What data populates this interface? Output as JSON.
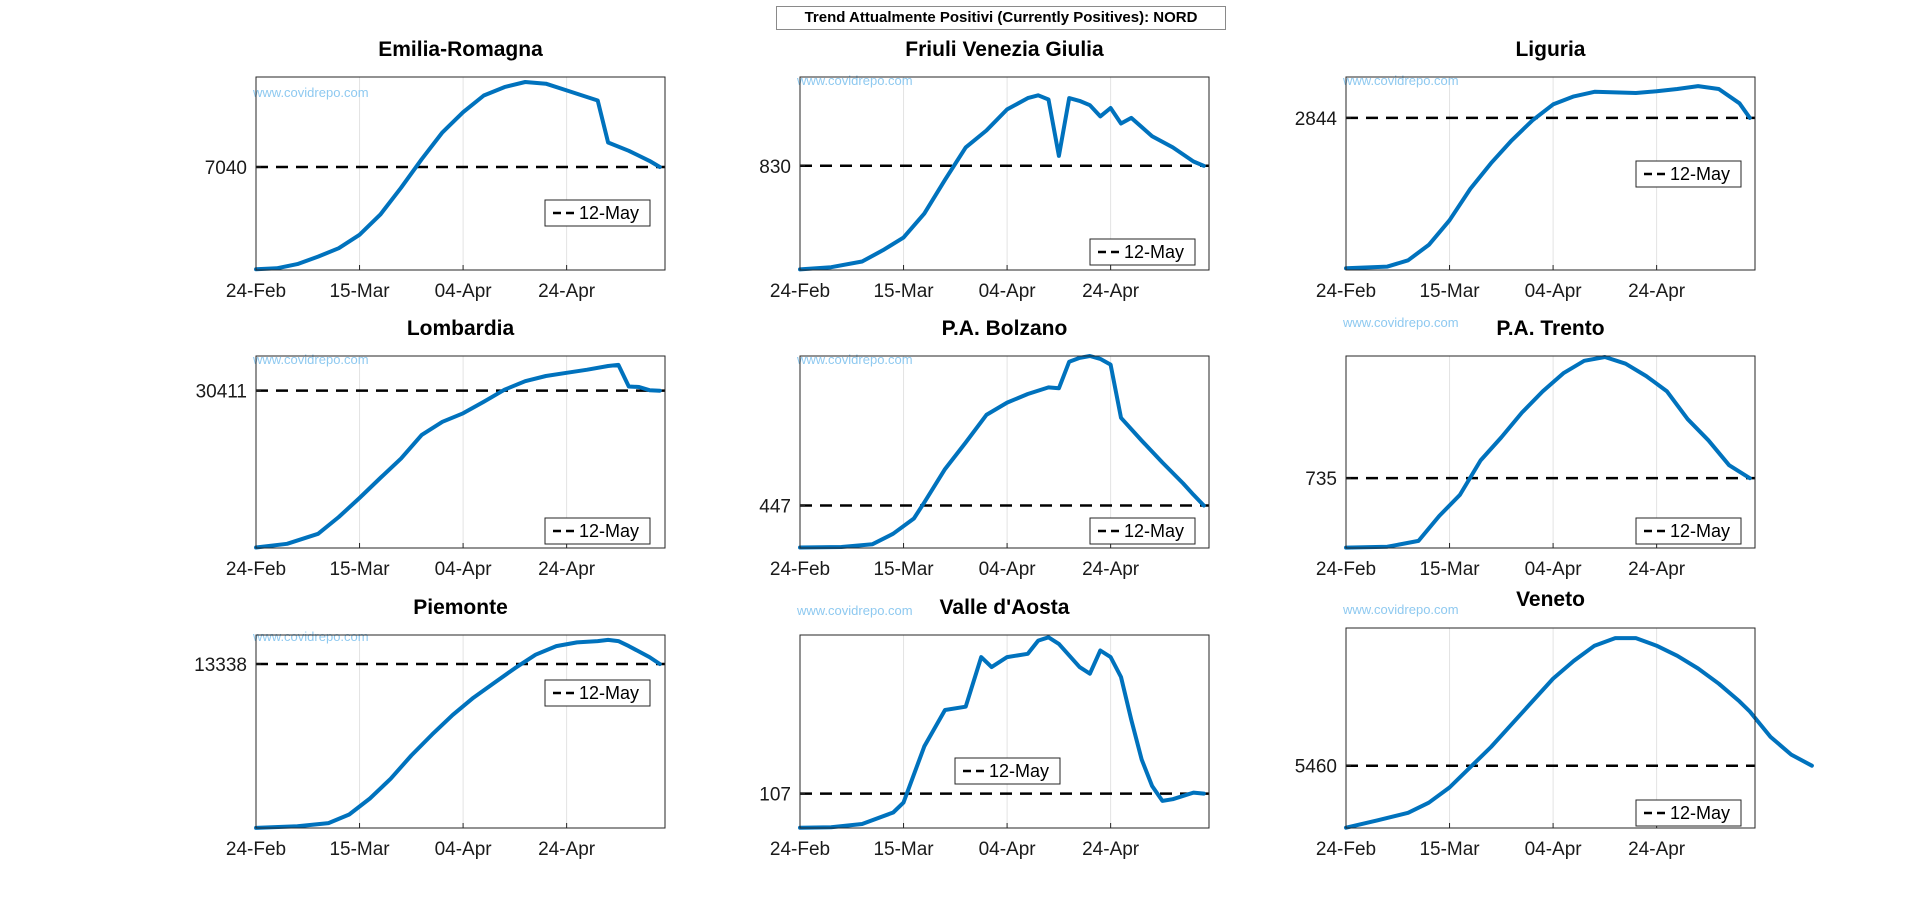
{
  "figure_title": "Trend Attualmente Positivi (Currently Positives): NORD",
  "watermark": "www.covidrepo.com",
  "colors": {
    "line": "#0072bd",
    "reference": "#000000",
    "grid": "#e3e3e3",
    "watermark": "#8ec9f0"
  },
  "chart_data": [
    {
      "type": "line",
      "title": "Emilia-Romagna",
      "legend": "12-May",
      "reference_label": "7040",
      "reference": 7040,
      "ylim": [
        900,
        12400
      ],
      "xlim": [
        0,
        79
      ],
      "xticks": [
        0,
        20,
        40,
        60
      ],
      "xticklabels": [
        "24-Feb",
        "15-Mar",
        "04-Apr",
        "24-Apr"
      ],
      "series": [
        {
          "points": [
            [
              0,
              940
            ],
            [
              4,
              1000
            ],
            [
              8,
              1250
            ],
            [
              12,
              1700
            ],
            [
              16,
              2200
            ],
            [
              20,
              3000
            ],
            [
              24,
              4200
            ],
            [
              28,
              5800
            ],
            [
              32,
              7500
            ],
            [
              36,
              9100
            ],
            [
              40,
              10300
            ],
            [
              44,
              11300
            ],
            [
              48,
              11800
            ],
            [
              52,
              12100
            ],
            [
              56,
              12000
            ],
            [
              60,
              11600
            ],
            [
              64,
              11200
            ],
            [
              66,
              11000
            ],
            [
              68,
              8500
            ],
            [
              72,
              8000
            ],
            [
              76,
              7400
            ],
            [
              78,
              7040
            ]
          ]
        }
      ]
    },
    {
      "type": "line",
      "title": "Friuli Venezia Giulia",
      "legend": "12-May",
      "reference_label": "830",
      "reference": 830,
      "ylim": [
        90,
        1460
      ],
      "xlim": [
        0,
        79
      ],
      "xticks": [
        0,
        20,
        40,
        60
      ],
      "xticklabels": [
        "24-Feb",
        "15-Mar",
        "04-Apr",
        "24-Apr"
      ],
      "series": [
        {
          "points": [
            [
              0,
              94
            ],
            [
              6,
              110
            ],
            [
              12,
              150
            ],
            [
              16,
              230
            ],
            [
              20,
              320
            ],
            [
              24,
              490
            ],
            [
              28,
              730
            ],
            [
              32,
              960
            ],
            [
              36,
              1080
            ],
            [
              40,
              1230
            ],
            [
              44,
              1310
            ],
            [
              46,
              1330
            ],
            [
              48,
              1300
            ],
            [
              50,
              900
            ],
            [
              52,
              1310
            ],
            [
              54,
              1290
            ],
            [
              56,
              1260
            ],
            [
              58,
              1180
            ],
            [
              60,
              1240
            ],
            [
              62,
              1130
            ],
            [
              64,
              1170
            ],
            [
              68,
              1040
            ],
            [
              72,
              960
            ],
            [
              76,
              860
            ],
            [
              78,
              830
            ]
          ]
        }
      ]
    },
    {
      "type": "line",
      "title": "Liguria",
      "legend": "12-May",
      "reference_label": "2844",
      "reference": 2844,
      "ylim": [
        180,
        3560
      ],
      "xlim": [
        0,
        79
      ],
      "xticks": [
        0,
        20,
        40,
        60
      ],
      "xticklabels": [
        "24-Feb",
        "15-Mar",
        "04-Apr",
        "24-Apr"
      ],
      "series": [
        {
          "points": [
            [
              0,
              210
            ],
            [
              8,
              240
            ],
            [
              12,
              350
            ],
            [
              16,
              620
            ],
            [
              20,
              1050
            ],
            [
              24,
              1600
            ],
            [
              28,
              2050
            ],
            [
              32,
              2450
            ],
            [
              36,
              2800
            ],
            [
              40,
              3080
            ],
            [
              44,
              3220
            ],
            [
              48,
              3300
            ],
            [
              52,
              3290
            ],
            [
              56,
              3280
            ],
            [
              60,
              3310
            ],
            [
              64,
              3350
            ],
            [
              68,
              3400
            ],
            [
              72,
              3350
            ],
            [
              76,
              3100
            ],
            [
              78,
              2844
            ]
          ]
        }
      ]
    },
    {
      "type": "line",
      "title": "Lombardia",
      "legend": "12-May",
      "reference_label": "30411",
      "reference": 30411,
      "ylim": [
        500,
        37000
      ],
      "xlim": [
        0,
        79
      ],
      "xticks": [
        0,
        20,
        40,
        60
      ],
      "xticklabels": [
        "24-Feb",
        "15-Mar",
        "04-Apr",
        "24-Apr"
      ],
      "series": [
        {
          "points": [
            [
              0,
              600
            ],
            [
              6,
              1300
            ],
            [
              12,
              3200
            ],
            [
              16,
              6400
            ],
            [
              20,
              10000
            ],
            [
              24,
              13800
            ],
            [
              28,
              17500
            ],
            [
              32,
              22000
            ],
            [
              36,
              24500
            ],
            [
              40,
              26100
            ],
            [
              44,
              28300
            ],
            [
              48,
              30600
            ],
            [
              52,
              32200
            ],
            [
              56,
              33200
            ],
            [
              60,
              33800
            ],
            [
              64,
              34400
            ],
            [
              68,
              35100
            ],
            [
              70,
              35300
            ],
            [
              72,
              31200
            ],
            [
              74,
              31100
            ],
            [
              76,
              30500
            ],
            [
              78,
              30411
            ]
          ]
        }
      ]
    },
    {
      "type": "line",
      "title": "P.A. Bolzano",
      "legend": "12-May",
      "reference_label": "447",
      "reference": 447,
      "ylim": [
        0,
        2020
      ],
      "xlim": [
        0,
        79
      ],
      "xticks": [
        0,
        20,
        40,
        60
      ],
      "xticklabels": [
        "24-Feb",
        "15-Mar",
        "04-Apr",
        "24-Apr"
      ],
      "series": [
        {
          "points": [
            [
              0,
              5
            ],
            [
              8,
              10
            ],
            [
              14,
              40
            ],
            [
              18,
              150
            ],
            [
              22,
              310
            ],
            [
              24,
              480
            ],
            [
              28,
              830
            ],
            [
              32,
              1110
            ],
            [
              36,
              1400
            ],
            [
              40,
              1530
            ],
            [
              44,
              1620
            ],
            [
              48,
              1690
            ],
            [
              50,
              1680
            ],
            [
              52,
              1960
            ],
            [
              54,
              2000
            ],
            [
              56,
              2020
            ],
            [
              58,
              1990
            ],
            [
              60,
              1930
            ],
            [
              62,
              1370
            ],
            [
              66,
              1130
            ],
            [
              70,
              900
            ],
            [
              74,
              680
            ],
            [
              76,
              560
            ],
            [
              78,
              447
            ]
          ]
        }
      ]
    },
    {
      "type": "line",
      "title": "P.A. Trento",
      "legend": "12-May",
      "reference_label": "735",
      "reference": 735,
      "ylim": [
        6,
        2010
      ],
      "xlim": [
        0,
        79
      ],
      "xticks": [
        0,
        20,
        40,
        60
      ],
      "xticklabels": [
        "24-Feb",
        "15-Mar",
        "04-Apr",
        "24-Apr"
      ],
      "series": [
        {
          "points": [
            [
              0,
              10
            ],
            [
              8,
              20
            ],
            [
              14,
              80
            ],
            [
              18,
              340
            ],
            [
              22,
              560
            ],
            [
              26,
              920
            ],
            [
              30,
              1160
            ],
            [
              34,
              1420
            ],
            [
              38,
              1640
            ],
            [
              42,
              1830
            ],
            [
              46,
              1960
            ],
            [
              50,
              2000
            ],
            [
              54,
              1930
            ],
            [
              58,
              1800
            ],
            [
              62,
              1640
            ],
            [
              66,
              1350
            ],
            [
              70,
              1130
            ],
            [
              74,
              870
            ],
            [
              78,
              735
            ]
          ]
        }
      ]
    },
    {
      "type": "line",
      "title": "Piemonte",
      "legend": "12-May",
      "reference_label": "13338",
      "reference": 13338,
      "ylim": [
        0,
        15700
      ],
      "xlim": [
        0,
        79
      ],
      "xticks": [
        0,
        20,
        40,
        60
      ],
      "xticklabels": [
        "24-Feb",
        "15-Mar",
        "04-Apr",
        "24-Apr"
      ],
      "series": [
        {
          "points": [
            [
              0,
              10
            ],
            [
              8,
              150
            ],
            [
              14,
              400
            ],
            [
              18,
              1100
            ],
            [
              22,
              2400
            ],
            [
              26,
              4000
            ],
            [
              30,
              5900
            ],
            [
              34,
              7600
            ],
            [
              38,
              9200
            ],
            [
              42,
              10600
            ],
            [
              46,
              11800
            ],
            [
              50,
              13000
            ],
            [
              54,
              14100
            ],
            [
              58,
              14800
            ],
            [
              62,
              15100
            ],
            [
              66,
              15200
            ],
            [
              68,
              15300
            ],
            [
              70,
              15200
            ],
            [
              72,
              14800
            ],
            [
              76,
              13900
            ],
            [
              78,
              13338
            ]
          ]
        }
      ]
    },
    {
      "type": "line",
      "title": "Valle d'Aosta",
      "legend": "12-May",
      "reference_label": "107",
      "reference": 107,
      "ylim": [
        3,
        587
      ],
      "xlim": [
        0,
        79
      ],
      "xticks": [
        0,
        20,
        40,
        60
      ],
      "xticklabels": [
        "24-Feb",
        "15-Mar",
        "04-Apr",
        "24-Apr"
      ],
      "series": [
        {
          "points": [
            [
              0,
              4
            ],
            [
              6,
              5
            ],
            [
              12,
              15
            ],
            [
              18,
              50
            ],
            [
              20,
              80
            ],
            [
              24,
              250
            ],
            [
              28,
              360
            ],
            [
              32,
              370
            ],
            [
              35,
              520
            ],
            [
              37,
              490
            ],
            [
              40,
              520
            ],
            [
              44,
              530
            ],
            [
              46,
              570
            ],
            [
              48,
              580
            ],
            [
              50,
              560
            ],
            [
              54,
              490
            ],
            [
              56,
              470
            ],
            [
              58,
              540
            ],
            [
              60,
              520
            ],
            [
              62,
              460
            ],
            [
              64,
              330
            ],
            [
              66,
              210
            ],
            [
              68,
              130
            ],
            [
              70,
              85
            ],
            [
              72,
              90
            ],
            [
              76,
              110
            ],
            [
              78,
              107
            ]
          ]
        }
      ]
    },
    {
      "type": "line",
      "title": "Veneto",
      "legend": "12-May",
      "reference_label": "5460",
      "reference": 5460,
      "ylim": [
        3000,
        10900
      ],
      "xlim": [
        0,
        79
      ],
      "xticks": [
        0,
        20,
        40,
        60
      ],
      "xticklabels": [
        "24-Feb",
        "15-Mar",
        "04-Apr",
        "24-Apr"
      ],
      "series": [
        {
          "points": [
            [
              0,
              3010
            ],
            [
              6,
              3300
            ],
            [
              12,
              3600
            ],
            [
              16,
              4000
            ],
            [
              20,
              4600
            ],
            [
              24,
              5400
            ],
            [
              28,
              6200
            ],
            [
              32,
              7100
            ],
            [
              36,
              8000
            ],
            [
              40,
              8900
            ],
            [
              44,
              9600
            ],
            [
              48,
              10200
            ],
            [
              52,
              10500
            ],
            [
              56,
              10500
            ],
            [
              60,
              10200
            ],
            [
              64,
              9800
            ],
            [
              68,
              9300
            ],
            [
              72,
              8700
            ],
            [
              76,
              8000
            ],
            [
              78,
              7600
            ],
            [
              82,
              6600
            ],
            [
              86,
              5900
            ],
            [
              90,
              5460
            ]
          ]
        }
      ]
    }
  ]
}
